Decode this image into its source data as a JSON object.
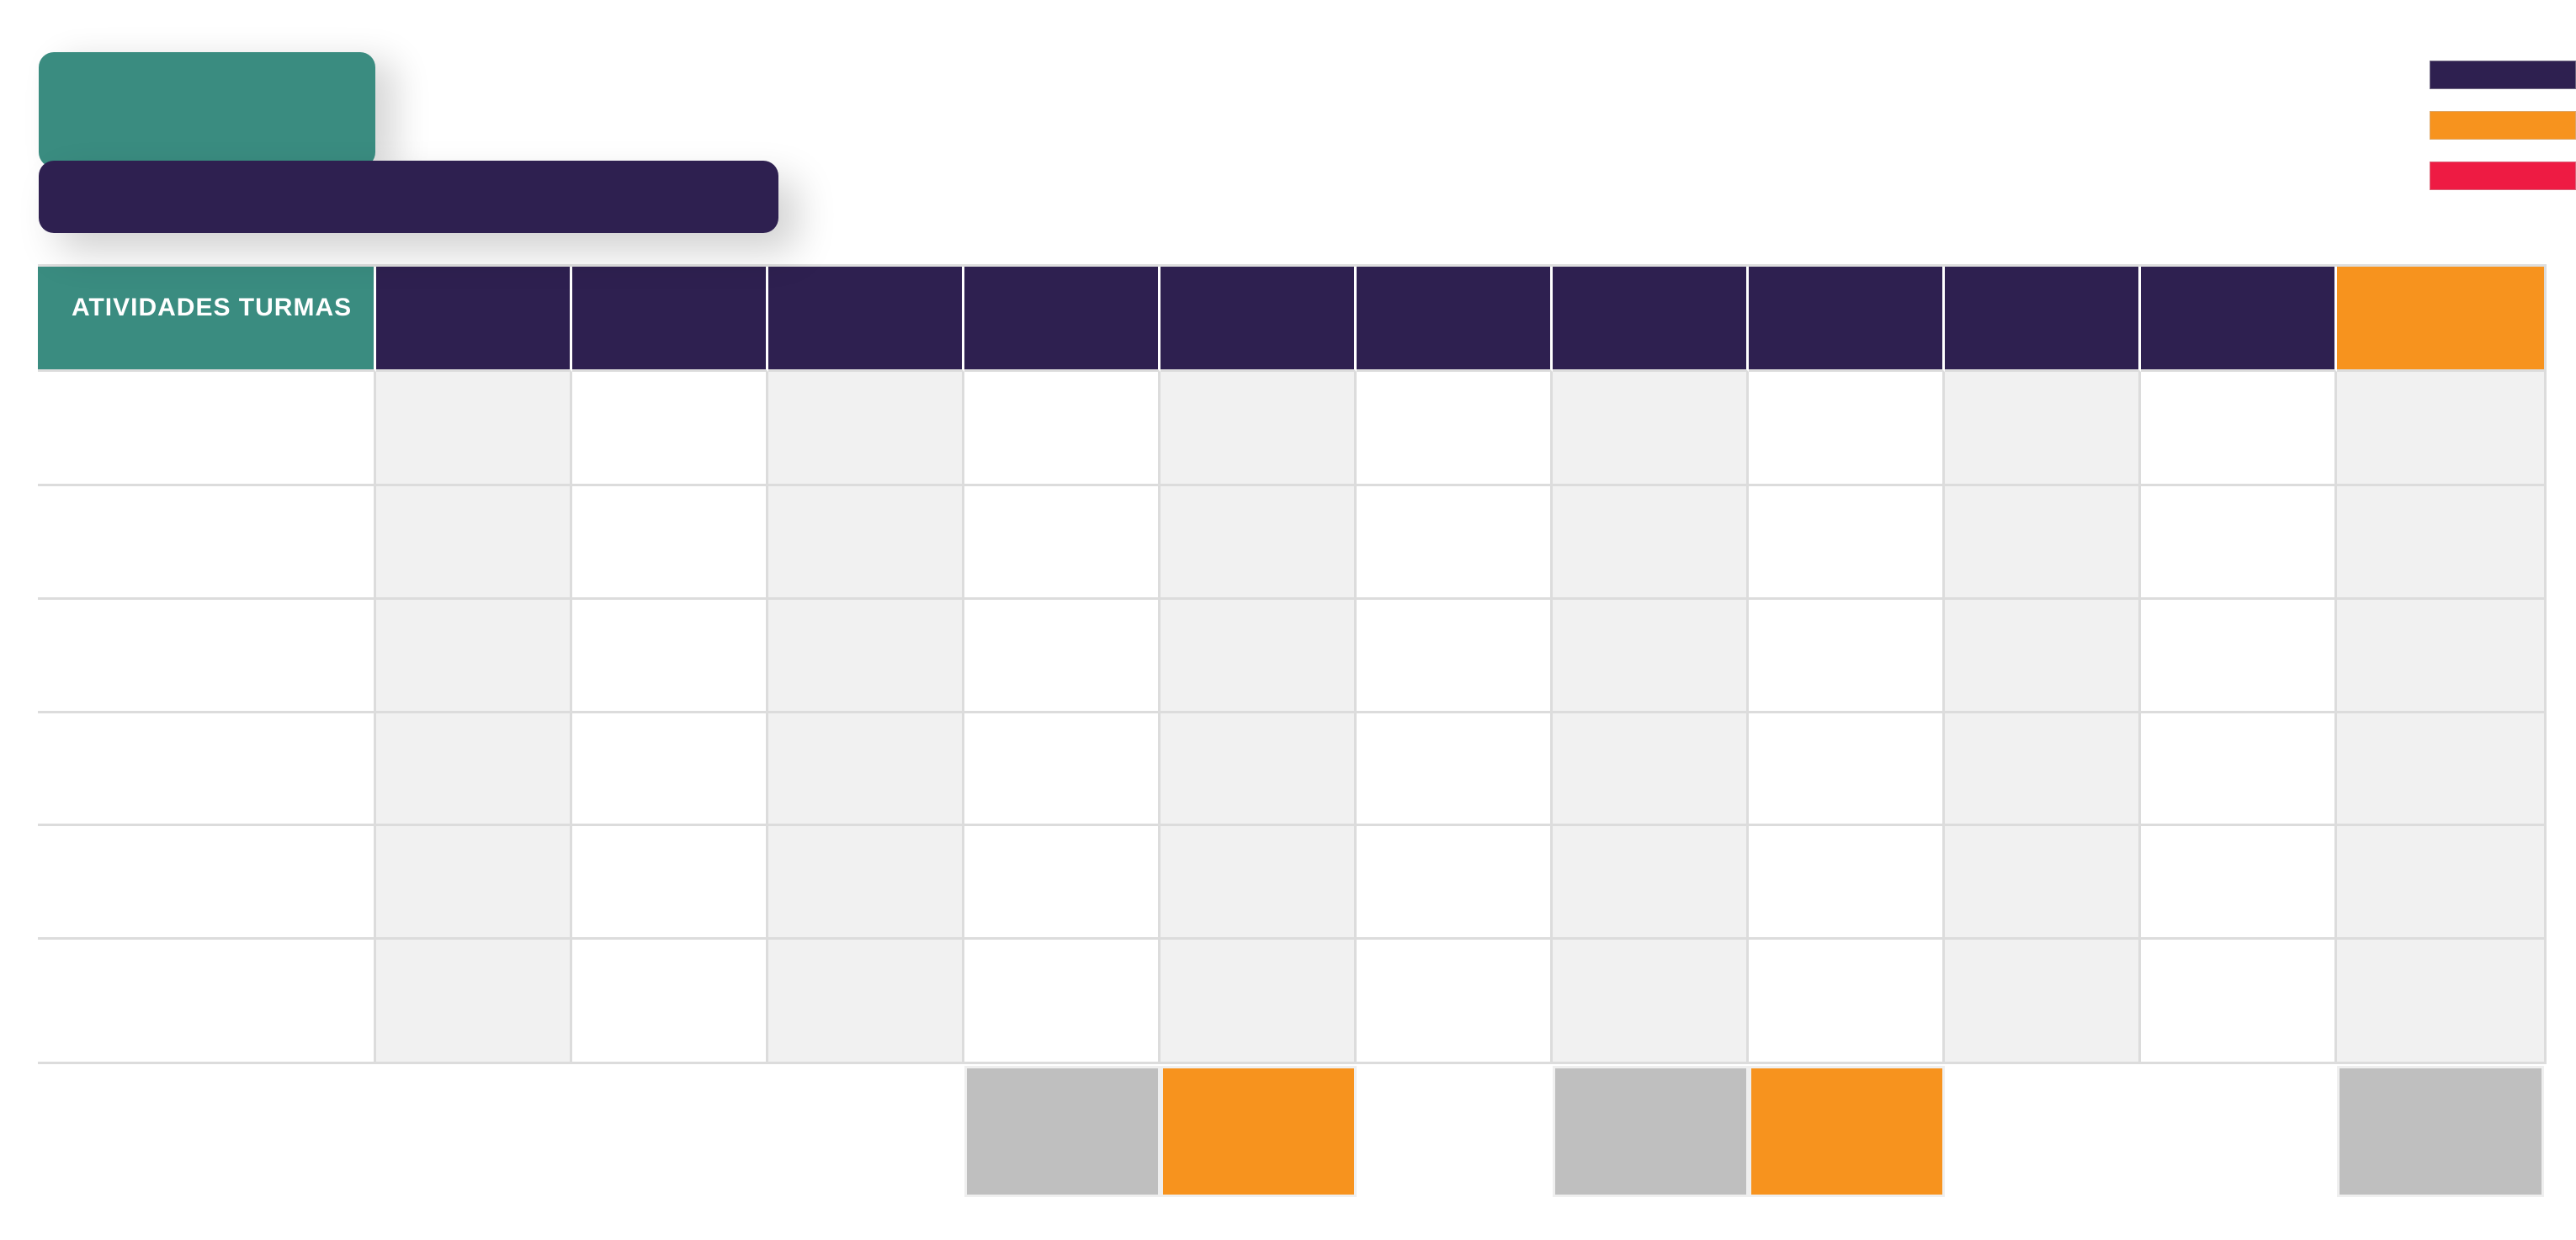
{
  "banner": {
    "teal_block": {
      "color": "#3A8C80"
    },
    "purple_block": {
      "color": "#2E2050"
    }
  },
  "legend": {
    "items": [
      {
        "name": "legend-bar-purple",
        "color": "#2E2050"
      },
      {
        "name": "legend-bar-orange",
        "color": "#F7931E"
      },
      {
        "name": "legend-bar-red",
        "color": "#EE1B43"
      }
    ]
  },
  "table": {
    "header": {
      "title": "ATIVIDADES TURMAS",
      "title_cell_color": "#3A8C80",
      "cell_color": "#2E2050",
      "last_cell_color": "#F7931E",
      "column_count": 12
    },
    "body": {
      "row_count": 6,
      "stripe_color": "#F1F1F1",
      "base_color": "#FFFFFF"
    },
    "footer_highlights": [
      {
        "column": 5,
        "color": "#BFBFBF"
      },
      {
        "column": 6,
        "color": "#F7931E"
      },
      {
        "column": 8,
        "color": "#BFBFBF"
      },
      {
        "column": 9,
        "color": "#F7931E"
      },
      {
        "column": 12,
        "color": "#BFBFBF"
      }
    ]
  },
  "colors": {
    "page_background": "#FFFFFF",
    "grid_line": "#DCDCDC",
    "footer_frame": "#EFEFEF"
  }
}
